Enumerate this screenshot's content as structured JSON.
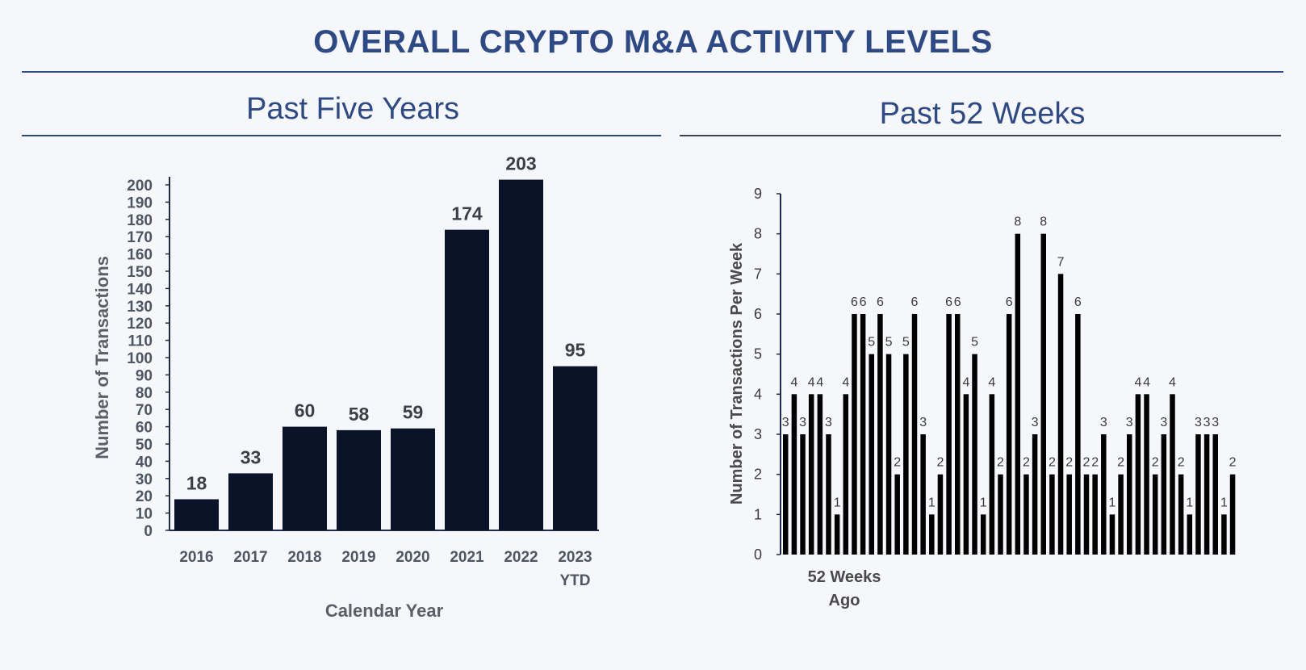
{
  "header": {
    "title": "OVERALL CRYPTO M&A ACTIVITY LEVELS"
  },
  "left_panel": {
    "title": "Past Five Years"
  },
  "right_panel": {
    "title": "Past 52 Weeks"
  },
  "colors": {
    "heading": "#2e4a86",
    "bar_left": "#0b1329",
    "bar_right": "#000000"
  },
  "chart_data": [
    {
      "type": "bar",
      "categories": [
        "2016",
        "2017",
        "2018",
        "2019",
        "2020",
        "2021",
        "2022",
        "2023 YTD"
      ],
      "values": [
        18,
        33,
        60,
        58,
        59,
        174,
        203,
        95
      ],
      "title": "Past Five Years",
      "xlabel": "Calendar Year",
      "ylabel": "Number of Transactions",
      "ylim": [
        0,
        200
      ],
      "yticks": [
        0,
        10,
        20,
        30,
        40,
        50,
        60,
        70,
        80,
        90,
        100,
        110,
        120,
        130,
        140,
        150,
        160,
        170,
        180,
        190,
        200
      ],
      "grid": false,
      "data_labels": true
    },
    {
      "type": "bar",
      "values": [
        3,
        4,
        3,
        4,
        4,
        3,
        1,
        4,
        6,
        6,
        5,
        6,
        5,
        2,
        5,
        6,
        3,
        1,
        2,
        6,
        6,
        4,
        5,
        1,
        4,
        2,
        6,
        8,
        2,
        3,
        8,
        2,
        7,
        2,
        6,
        2,
        2,
        3,
        1,
        2,
        3,
        4,
        4,
        2,
        3,
        4,
        2,
        1,
        3,
        3,
        3,
        1,
        2
      ],
      "title": "Past 52 Weeks",
      "xlabel": "52 Weeks Ago",
      "ylabel": "Number of Transactions Per Week",
      "ylim": [
        0,
        9
      ],
      "yticks": [
        0,
        1,
        2,
        3,
        4,
        5,
        6,
        7,
        8,
        9
      ],
      "grid": false,
      "data_labels": true
    }
  ]
}
